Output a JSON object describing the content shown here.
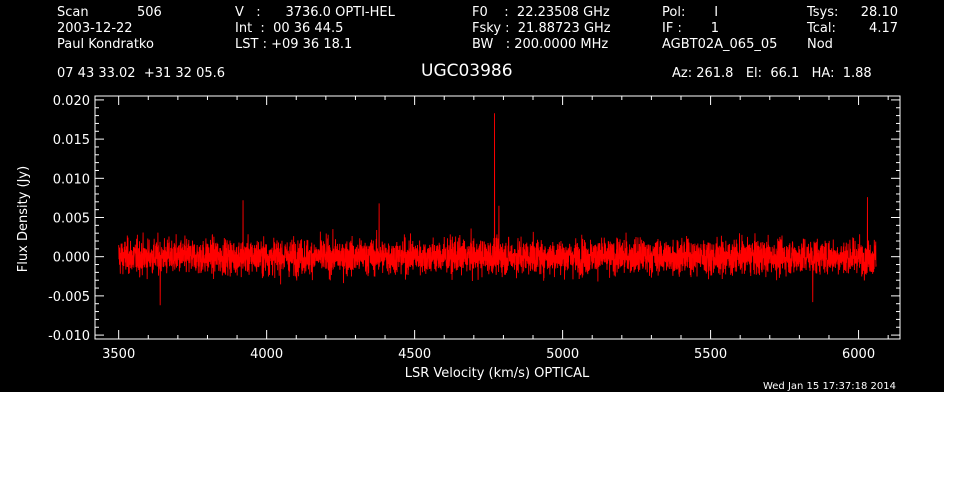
{
  "header": {
    "col1": [
      "Scan",
      "2003-12-22",
      "Paul Kondratko"
    ],
    "scan_number": "506",
    "col2": [
      "V   :      3736.0 OPTI-HEL",
      "Int  :  00 36 44.5",
      "LST : +09 36 18.1"
    ],
    "col3": [
      "F0    :  22.23508 GHz",
      "Fsky :  21.88723 GHz",
      "BW   : 200.0000 MHz"
    ],
    "col4": [
      "Pol:       I",
      "IF :       1",
      "AGBT02A_065_05"
    ],
    "col5_labels": [
      "Tsys:",
      "Tcal:",
      "Nod"
    ],
    "col5_values": [
      "28.10",
      "4.17",
      ""
    ],
    "coords": "07 43 33.02  +31 32 05.6",
    "object": "UGC03986",
    "azelha": "Az: 261.8   El:  66.1   HA:  1.88",
    "timestamp": "Wed Jan 15 17:37:18 2014"
  },
  "colors": {
    "background": "#000000",
    "axes": "#ffffff",
    "spectrum": "#ff0000"
  },
  "chart_data": {
    "type": "line",
    "xlabel": "LSR Velocity (km/s) OPTICAL",
    "ylabel": "Flux Density (Jy)",
    "xlim": [
      3420,
      6140
    ],
    "ylim": [
      -0.0105,
      0.0205
    ],
    "xticks": [
      3500,
      4000,
      4500,
      5000,
      5500,
      6000
    ],
    "xtick_labels": [
      "3500",
      "4000",
      "4500",
      "5000",
      "5500",
      "6000"
    ],
    "yticks": [
      -0.01,
      -0.005,
      0.0,
      0.005,
      0.01,
      0.015,
      0.02
    ],
    "ytick_labels": [
      "-0.010",
      "-0.005",
      "0.000",
      "0.005",
      "0.010",
      "0.015",
      "0.020"
    ],
    "series": [
      {
        "noise_rms_jy": 0.0018,
        "velocity_range": [
          3500,
          6060
        ],
        "baseline_jy": 0.0,
        "features": [
          {
            "velocity": 4770,
            "flux": 0.0183
          },
          {
            "velocity": 4785,
            "flux": 0.0065
          },
          {
            "velocity": 3920,
            "flux": 0.0072
          },
          {
            "velocity": 4380,
            "flux": 0.0068
          },
          {
            "velocity": 6030,
            "flux": 0.0076
          },
          {
            "velocity": 5845,
            "flux": -0.0058
          },
          {
            "velocity": 3640,
            "flux": -0.0062
          }
        ]
      }
    ]
  }
}
